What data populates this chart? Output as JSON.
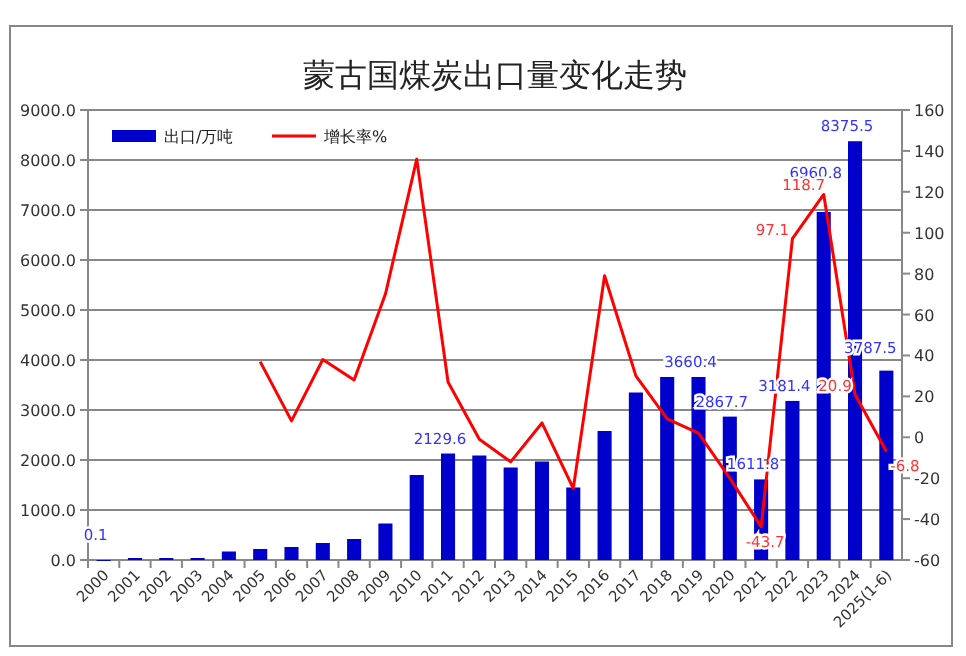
{
  "chart_data": {
    "type": "bar",
    "title": "蒙古国煤炭出口量变化走势",
    "categories": [
      "2000",
      "2001",
      "2002",
      "2003",
      "2004",
      "2005",
      "2006",
      "2007",
      "2008",
      "2009",
      "2010",
      "2011",
      "2012",
      "2013",
      "2014",
      "2015",
      "2016",
      "2017",
      "2018",
      "2019",
      "2020",
      "2021",
      "2022",
      "2023",
      "2024",
      "2025(1-6)"
    ],
    "series": [
      {
        "name": "出口/万吨",
        "color": "#0000cc",
        "values": [
          0.1,
          40,
          40,
          40,
          170,
          220,
          260,
          340,
          420,
          730,
          1700,
          2129.6,
          2090,
          1850,
          1970,
          1450,
          2580,
          3350,
          3660,
          3660.4,
          2867.7,
          1611.8,
          3181.4,
          6960.8,
          8375.5,
          3787.5
        ],
        "value_labels": [
          "0.1",
          null,
          null,
          null,
          null,
          null,
          null,
          null,
          null,
          null,
          null,
          "2129.6",
          null,
          null,
          null,
          null,
          null,
          null,
          null,
          "3660.4",
          "2867.7",
          "1611.8",
          "3181.4",
          "6960.8",
          "8375.5",
          "3787.5"
        ]
      },
      {
        "name": "增长率%",
        "type": "line",
        "axis": "y2",
        "color": "#ff0000",
        "values": [
          null,
          null,
          null,
          null,
          null,
          37,
          8,
          38,
          28,
          70,
          136,
          27,
          -1,
          -12,
          7,
          -25,
          79,
          30,
          9,
          2,
          -20,
          -43.7,
          97.1,
          118.7,
          20.9,
          -6.8
        ],
        "value_labels": [
          null,
          null,
          null,
          null,
          null,
          null,
          null,
          null,
          null,
          null,
          null,
          null,
          null,
          null,
          null,
          null,
          null,
          null,
          null,
          null,
          null,
          "-43.7",
          "97.1",
          "118.7",
          "20.9",
          "-6.8"
        ]
      }
    ],
    "ylim": [
      0,
      9000
    ],
    "yticks": [
      {
        "value": 0,
        "label": "0.0"
      },
      {
        "value": 1000,
        "label": "1000.0"
      },
      {
        "value": 2000,
        "label": "2000.0"
      },
      {
        "value": 3000,
        "label": "3000.0"
      },
      {
        "value": 4000,
        "label": "4000.0"
      },
      {
        "value": 5000,
        "label": "5000.0"
      },
      {
        "value": 6000,
        "label": "6000.0"
      },
      {
        "value": 7000,
        "label": "7000.0"
      },
      {
        "value": 8000,
        "label": "8000.0"
      },
      {
        "value": 9000,
        "label": "9000.0"
      }
    ],
    "y2lim": [
      -60,
      160
    ],
    "y2ticks": [
      -60,
      -40,
      -20,
      0,
      20,
      40,
      60,
      80,
      100,
      120,
      140,
      160
    ],
    "grid": "y",
    "legend": "top left",
    "marker": "none"
  }
}
